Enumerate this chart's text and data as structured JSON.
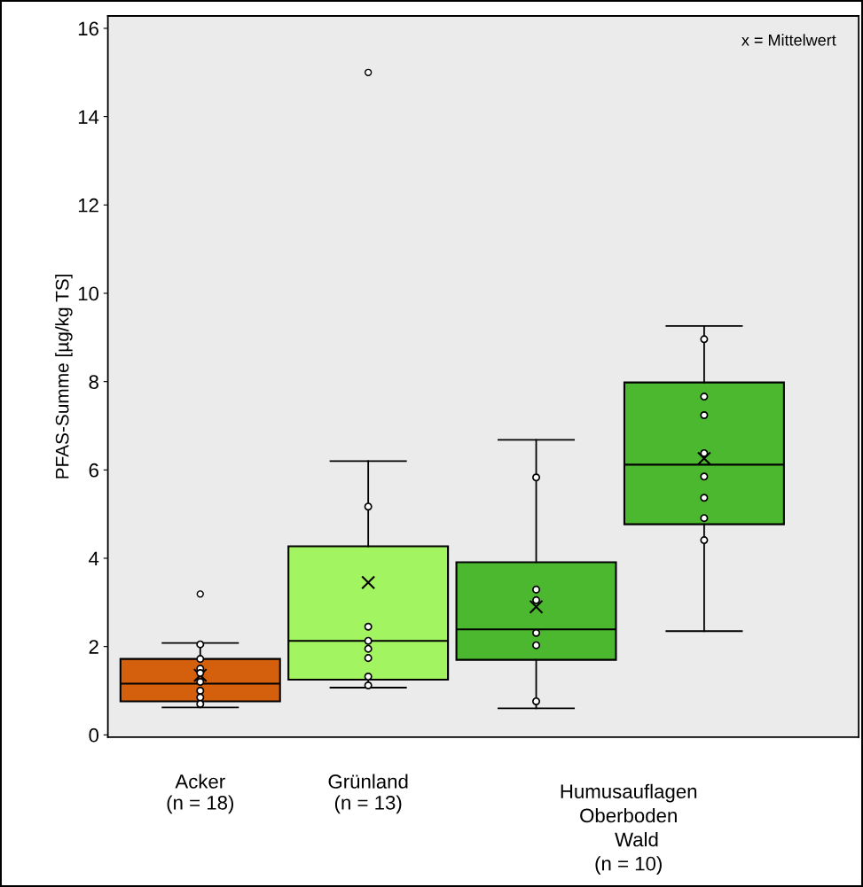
{
  "chart_data": {
    "type": "box",
    "ylabel": "PFAS-Summe [µg/kg TS]",
    "categories": [
      "Acker\n(n = 18)",
      "Grünland\n(n = 13)",
      null,
      null
    ],
    "colors": [
      "#d4600e",
      "#a2f560",
      "#4cb830",
      "#4cb830"
    ],
    "boxes": [
      {
        "low": 0.62,
        "q1": 0.76,
        "median": 1.16,
        "q3": 1.72,
        "high": 2.08,
        "mean": 1.35,
        "outliers": [
          3.19
        ]
      },
      {
        "low": 1.07,
        "q1": 1.25,
        "median": 2.13,
        "q3": 4.27,
        "high": 6.2,
        "mean": 3.45,
        "outliers": [
          15.0
        ]
      },
      {
        "low": 0.6,
        "q1": 1.7,
        "median": 2.39,
        "q3": 3.91,
        "high": 6.68,
        "mean": 2.9
      },
      {
        "low": 2.35,
        "q1": 4.77,
        "median": 6.12,
        "q3": 7.98,
        "high": 9.26,
        "mean": 6.26
      }
    ],
    "series": [
      {
        "type": "scatter",
        "color": "#ffffff",
        "values": [
          2.05,
          5.17,
          5.83,
          8.96
        ]
      },
      {
        "type": "scatter",
        "color": "#ffffff",
        "values": [
          1.72,
          2.45,
          3.29,
          7.66
        ]
      },
      {
        "type": "scatter",
        "color": "#ffffff",
        "values": [
          1.5,
          2.13,
          3.05,
          7.24
        ]
      },
      {
        "type": "scatter",
        "color": "#ffffff",
        "values": [
          1.4,
          1.95,
          2.31,
          6.38
        ]
      },
      {
        "type": "scatter",
        "color": "#ffffff",
        "values": [
          1.2,
          1.74,
          2.03,
          5.85
        ]
      },
      {
        "type": "scatter",
        "color": "#ffffff",
        "values": [
          1.0,
          1.32,
          0.76,
          5.37
        ]
      },
      {
        "type": "scatter",
        "color": "#ffffff",
        "values": [
          0.85,
          1.12,
          null,
          4.91
        ]
      },
      {
        "type": "scatter",
        "color": "#ffffff",
        "values": [
          0.7,
          null,
          null,
          4.41
        ]
      }
    ],
    "ylim": [
      -0.05,
      16.28
    ],
    "yticks": [
      0,
      2,
      4,
      6,
      8,
      10,
      12,
      14,
      16
    ],
    "grid": false,
    "legend": false,
    "annotations": [
      "x = Mittelwert",
      "Humusauflagen\nOberboden\n   Wald\n(n = 10)"
    ]
  }
}
